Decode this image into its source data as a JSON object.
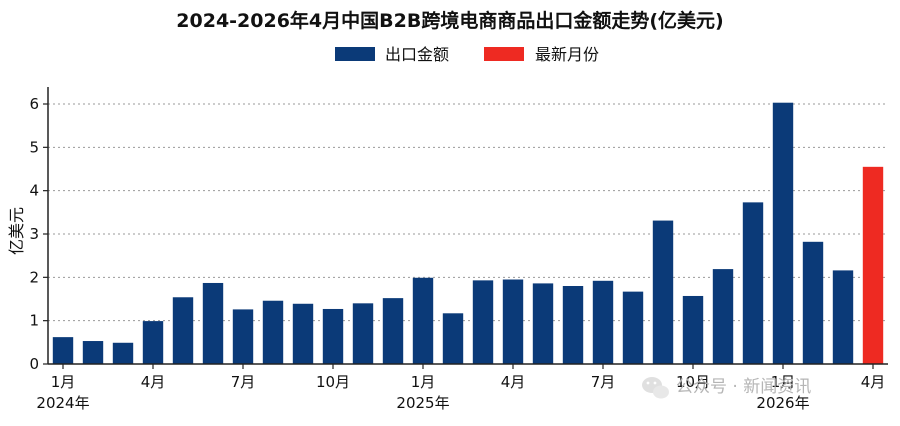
{
  "chart_data": {
    "type": "bar",
    "title": "2024-2026年4月中国B2B跨境电商商品出口金额走势(亿美元)",
    "ylabel": "亿美元",
    "xlabel": "",
    "ylim": [
      0,
      6.3
    ],
    "yticks": [
      0,
      1,
      2,
      3,
      4,
      5,
      6
    ],
    "grid": "horizontal-dotted",
    "legend_position": "top-center",
    "legend": [
      {
        "name": "出口金额",
        "color": "#0b3a78"
      },
      {
        "name": "最新月份",
        "color": "#ee2a22"
      }
    ],
    "categories": [
      "2024-01",
      "2024-02",
      "2024-03",
      "2024-04",
      "2024-05",
      "2024-06",
      "2024-07",
      "2024-08",
      "2024-09",
      "2024-10",
      "2024-11",
      "2024-12",
      "2025-01",
      "2025-02",
      "2025-03",
      "2025-04",
      "2025-05",
      "2025-06",
      "2025-07",
      "2025-08",
      "2025-09",
      "2025-10",
      "2025-11",
      "2025-12",
      "2026-01",
      "2026-02",
      "2026-03",
      "2026-04"
    ],
    "values": [
      0.62,
      0.53,
      0.49,
      0.99,
      1.54,
      1.87,
      1.26,
      1.46,
      1.39,
      1.27,
      1.4,
      1.52,
      1.99,
      1.17,
      1.93,
      1.95,
      1.86,
      1.8,
      1.92,
      1.67,
      3.31,
      1.57,
      2.19,
      3.73,
      6.03,
      2.82,
      2.16,
      4.55
    ],
    "highlight_index": 27,
    "x_tick_labels": [
      {
        "index": 0,
        "label": "1月"
      },
      {
        "index": 3,
        "label": "4月"
      },
      {
        "index": 6,
        "label": "7月"
      },
      {
        "index": 9,
        "label": "10月"
      },
      {
        "index": 12,
        "label": "1月"
      },
      {
        "index": 15,
        "label": "4月"
      },
      {
        "index": 18,
        "label": "7月"
      },
      {
        "index": 21,
        "label": "10月"
      },
      {
        "index": 24,
        "label": "1月"
      },
      {
        "index": 27,
        "label": "4月"
      }
    ],
    "year_labels": [
      {
        "index": 0,
        "label": "2024年"
      },
      {
        "index": 12,
        "label": "2025年"
      },
      {
        "index": 24,
        "label": "2026年"
      }
    ],
    "colors": {
      "base": "#0b3a78",
      "highlight": "#ee2a22"
    }
  },
  "watermark": {
    "text": "公众号 · 新闻资讯",
    "icon": "wechat-icon"
  }
}
